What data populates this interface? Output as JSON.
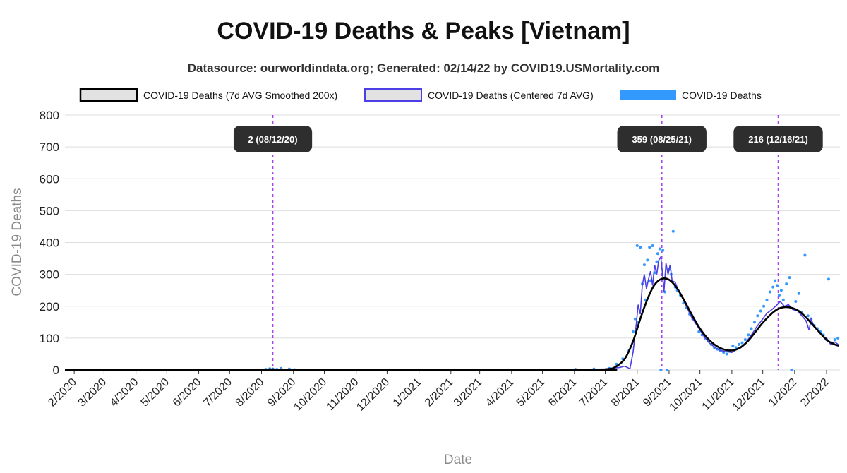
{
  "chart_data": {
    "type": "line",
    "title": "COVID-19 Deaths & Peaks [Vietnam]",
    "subtitle": "Datasource: ourworldindata.org; Generated: 02/14/22 by COVID19.USMortality.com",
    "xlabel": "Date",
    "ylabel": "COVID-19 Deaths",
    "ylim": [
      0,
      800
    ],
    "yticks": [
      0,
      100,
      200,
      300,
      400,
      500,
      600,
      700,
      800
    ],
    "xlim": [
      "2020-01-23",
      "2022-02-14"
    ],
    "xticks": [
      {
        "date": "2020-02-01",
        "label": "2/2020"
      },
      {
        "date": "2020-03-01",
        "label": "3/2020"
      },
      {
        "date": "2020-04-01",
        "label": "4/2020"
      },
      {
        "date": "2020-05-01",
        "label": "5/2020"
      },
      {
        "date": "2020-06-01",
        "label": "6/2020"
      },
      {
        "date": "2020-07-01",
        "label": "7/2020"
      },
      {
        "date": "2020-08-01",
        "label": "8/2020"
      },
      {
        "date": "2020-09-01",
        "label": "9/2020"
      },
      {
        "date": "2020-10-01",
        "label": "10/2020"
      },
      {
        "date": "2020-11-01",
        "label": "11/2020"
      },
      {
        "date": "2020-12-01",
        "label": "12/2020"
      },
      {
        "date": "2021-01-01",
        "label": "1/2021"
      },
      {
        "date": "2021-02-01",
        "label": "2/2021"
      },
      {
        "date": "2021-03-01",
        "label": "3/2021"
      },
      {
        "date": "2021-04-01",
        "label": "4/2021"
      },
      {
        "date": "2021-05-01",
        "label": "5/2021"
      },
      {
        "date": "2021-06-01",
        "label": "6/2021"
      },
      {
        "date": "2021-07-01",
        "label": "7/2021"
      },
      {
        "date": "2021-08-01",
        "label": "8/2021"
      },
      {
        "date": "2021-09-01",
        "label": "9/2021"
      },
      {
        "date": "2021-10-01",
        "label": "10/2021"
      },
      {
        "date": "2021-11-01",
        "label": "11/2021"
      },
      {
        "date": "2021-12-01",
        "label": "12/2021"
      },
      {
        "date": "2022-01-01",
        "label": "1/2022"
      },
      {
        "date": "2022-02-01",
        "label": "2/2022"
      }
    ],
    "grid": true,
    "legend_position": "top",
    "series": [
      {
        "name": "COVID-19 Deaths (7d AVG Smoothed 200x)",
        "kind": "line",
        "color": "#000000",
        "points": [
          [
            "2020-01-23",
            0
          ],
          [
            "2020-08-01",
            0
          ],
          [
            "2020-08-12",
            2
          ],
          [
            "2020-08-25",
            0
          ],
          [
            "2021-06-15",
            0
          ],
          [
            "2021-07-01",
            2
          ],
          [
            "2021-07-10",
            8
          ],
          [
            "2021-07-20",
            35
          ],
          [
            "2021-07-28",
            90
          ],
          [
            "2021-08-05",
            170
          ],
          [
            "2021-08-12",
            230
          ],
          [
            "2021-08-18",
            268
          ],
          [
            "2021-08-25",
            286
          ],
          [
            "2021-09-01",
            283
          ],
          [
            "2021-09-08",
            260
          ],
          [
            "2021-09-15",
            222
          ],
          [
            "2021-09-22",
            180
          ],
          [
            "2021-09-29",
            140
          ],
          [
            "2021-10-06",
            108
          ],
          [
            "2021-10-13",
            85
          ],
          [
            "2021-10-20",
            70
          ],
          [
            "2021-10-27",
            62
          ],
          [
            "2021-11-03",
            62
          ],
          [
            "2021-11-10",
            72
          ],
          [
            "2021-11-17",
            92
          ],
          [
            "2021-11-24",
            120
          ],
          [
            "2021-12-01",
            148
          ],
          [
            "2021-12-08",
            172
          ],
          [
            "2021-12-15",
            190
          ],
          [
            "2021-12-22",
            197
          ],
          [
            "2021-12-29",
            195
          ],
          [
            "2022-01-05",
            185
          ],
          [
            "2022-01-12",
            165
          ],
          [
            "2022-01-19",
            140
          ],
          [
            "2022-01-26",
            115
          ],
          [
            "2022-02-02",
            92
          ],
          [
            "2022-02-09",
            80
          ],
          [
            "2022-02-13",
            76
          ]
        ]
      },
      {
        "name": "COVID-19 Deaths (Centered 7d AVG)",
        "kind": "line",
        "color": "#4b3fe6",
        "points": [
          [
            "2020-01-23",
            0
          ],
          [
            "2020-07-25",
            0
          ],
          [
            "2020-08-01",
            2
          ],
          [
            "2020-08-12",
            2
          ],
          [
            "2020-08-20",
            1
          ],
          [
            "2020-09-05",
            0
          ],
          [
            "2021-05-01",
            0
          ],
          [
            "2021-06-01",
            1
          ],
          [
            "2021-07-01",
            3
          ],
          [
            "2021-07-15",
            8
          ],
          [
            "2021-07-20",
            12
          ],
          [
            "2021-07-25",
            4
          ],
          [
            "2021-07-28",
            55
          ],
          [
            "2021-07-31",
            140
          ],
          [
            "2021-08-02",
            205
          ],
          [
            "2021-08-04",
            175
          ],
          [
            "2021-08-06",
            265
          ],
          [
            "2021-08-08",
            300
          ],
          [
            "2021-08-10",
            255
          ],
          [
            "2021-08-12",
            285
          ],
          [
            "2021-08-14",
            310
          ],
          [
            "2021-08-16",
            265
          ],
          [
            "2021-08-18",
            330
          ],
          [
            "2021-08-20",
            300
          ],
          [
            "2021-08-22",
            345
          ],
          [
            "2021-08-24",
            355
          ],
          [
            "2021-08-26",
            290
          ],
          [
            "2021-08-27",
            245
          ],
          [
            "2021-08-29",
            335
          ],
          [
            "2021-08-31",
            300
          ],
          [
            "2021-09-02",
            330
          ],
          [
            "2021-09-04",
            280
          ],
          [
            "2021-09-07",
            275
          ],
          [
            "2021-09-10",
            250
          ],
          [
            "2021-09-14",
            225
          ],
          [
            "2021-09-18",
            200
          ],
          [
            "2021-09-22",
            170
          ],
          [
            "2021-09-26",
            150
          ],
          [
            "2021-09-30",
            130
          ],
          [
            "2021-10-05",
            105
          ],
          [
            "2021-10-10",
            85
          ],
          [
            "2021-10-15",
            72
          ],
          [
            "2021-10-20",
            62
          ],
          [
            "2021-10-25",
            58
          ],
          [
            "2021-11-01",
            55
          ],
          [
            "2021-11-06",
            65
          ],
          [
            "2021-11-10",
            70
          ],
          [
            "2021-11-15",
            88
          ],
          [
            "2021-11-20",
            110
          ],
          [
            "2021-11-25",
            135
          ],
          [
            "2021-12-01",
            160
          ],
          [
            "2021-12-05",
            178
          ],
          [
            "2021-12-10",
            190
          ],
          [
            "2021-12-15",
            205
          ],
          [
            "2021-12-18",
            215
          ],
          [
            "2021-12-22",
            200
          ],
          [
            "2021-12-26",
            205
          ],
          [
            "2021-12-30",
            190
          ],
          [
            "2022-01-04",
            185
          ],
          [
            "2022-01-08",
            170
          ],
          [
            "2022-01-12",
            155
          ],
          [
            "2022-01-15",
            125
          ],
          [
            "2022-01-17",
            160
          ],
          [
            "2022-01-20",
            135
          ],
          [
            "2022-01-24",
            125
          ],
          [
            "2022-01-28",
            105
          ],
          [
            "2022-02-01",
            100
          ],
          [
            "2022-02-05",
            80
          ],
          [
            "2022-02-09",
            88
          ],
          [
            "2022-02-13",
            78
          ]
        ]
      },
      {
        "name": "COVID-19 Deaths",
        "kind": "points",
        "color": "#3399ff",
        "points": [
          [
            "2020-08-05",
            2
          ],
          [
            "2020-08-09",
            4
          ],
          [
            "2020-08-12",
            3
          ],
          [
            "2020-08-16",
            2
          ],
          [
            "2020-08-20",
            5
          ],
          [
            "2020-08-28",
            3
          ],
          [
            "2020-09-02",
            1
          ],
          [
            "2021-06-02",
            2
          ],
          [
            "2021-06-20",
            3
          ],
          [
            "2021-07-05",
            5
          ],
          [
            "2021-07-12",
            18
          ],
          [
            "2021-07-18",
            35
          ],
          [
            "2021-07-24",
            60
          ],
          [
            "2021-07-28",
            120
          ],
          [
            "2021-07-30",
            160
          ],
          [
            "2021-08-01",
            390
          ],
          [
            "2021-08-02",
            150
          ],
          [
            "2021-08-04",
            385
          ],
          [
            "2021-08-06",
            270
          ],
          [
            "2021-08-08",
            330
          ],
          [
            "2021-08-09",
            220
          ],
          [
            "2021-08-11",
            345
          ],
          [
            "2021-08-13",
            385
          ],
          [
            "2021-08-14",
            280
          ],
          [
            "2021-08-16",
            390
          ],
          [
            "2021-08-18",
            305
          ],
          [
            "2021-08-20",
            340
          ],
          [
            "2021-08-21",
            365
          ],
          [
            "2021-08-23",
            380
          ],
          [
            "2021-08-24",
            0
          ],
          [
            "2021-08-26",
            375
          ],
          [
            "2021-08-28",
            245
          ],
          [
            "2021-08-30",
            0
          ],
          [
            "2021-09-01",
            315
          ],
          [
            "2021-09-03",
            300
          ],
          [
            "2021-09-05",
            435
          ],
          [
            "2021-09-07",
            260
          ],
          [
            "2021-09-09",
            250
          ],
          [
            "2021-09-12",
            235
          ],
          [
            "2021-09-15",
            210
          ],
          [
            "2021-09-18",
            195
          ],
          [
            "2021-09-21",
            175
          ],
          [
            "2021-09-24",
            160
          ],
          [
            "2021-09-27",
            150
          ],
          [
            "2021-09-30",
            120
          ],
          [
            "2021-10-03",
            110
          ],
          [
            "2021-10-06",
            100
          ],
          [
            "2021-10-09",
            90
          ],
          [
            "2021-10-12",
            80
          ],
          [
            "2021-10-15",
            70
          ],
          [
            "2021-10-18",
            65
          ],
          [
            "2021-10-21",
            60
          ],
          [
            "2021-10-24",
            55
          ],
          [
            "2021-10-27",
            50
          ],
          [
            "2021-10-30",
            60
          ],
          [
            "2021-11-02",
            75
          ],
          [
            "2021-11-05",
            70
          ],
          [
            "2021-11-08",
            80
          ],
          [
            "2021-11-11",
            85
          ],
          [
            "2021-11-14",
            95
          ],
          [
            "2021-11-17",
            110
          ],
          [
            "2021-11-20",
            130
          ],
          [
            "2021-11-23",
            150
          ],
          [
            "2021-11-26",
            170
          ],
          [
            "2021-11-29",
            185
          ],
          [
            "2021-12-02",
            200
          ],
          [
            "2021-12-05",
            220
          ],
          [
            "2021-12-08",
            245
          ],
          [
            "2021-12-11",
            260
          ],
          [
            "2021-12-13",
            280
          ],
          [
            "2021-12-15",
            265
          ],
          [
            "2021-12-17",
            235
          ],
          [
            "2021-12-19",
            250
          ],
          [
            "2021-12-21",
            220
          ],
          [
            "2021-12-24",
            270
          ],
          [
            "2021-12-27",
            290
          ],
          [
            "2021-12-29",
            0
          ],
          [
            "2022-01-02",
            215
          ],
          [
            "2022-01-05",
            240
          ],
          [
            "2022-01-08",
            180
          ],
          [
            "2022-01-11",
            360
          ],
          [
            "2022-01-14",
            170
          ],
          [
            "2022-01-17",
            160
          ],
          [
            "2022-01-20",
            140
          ],
          [
            "2022-01-23",
            130
          ],
          [
            "2022-01-26",
            120
          ],
          [
            "2022-01-29",
            110
          ],
          [
            "2022-02-01",
            95
          ],
          [
            "2022-02-03",
            285
          ],
          [
            "2022-02-06",
            85
          ],
          [
            "2022-02-09",
            95
          ],
          [
            "2022-02-12",
            100
          ]
        ]
      }
    ],
    "peaks": [
      {
        "date": "2020-08-12",
        "label": "2 (08/12/20)"
      },
      {
        "date": "2021-08-25",
        "label": "359 (08/25/21)"
      },
      {
        "date": "2021-12-16",
        "label": "216 (12/16/21)"
      }
    ]
  }
}
